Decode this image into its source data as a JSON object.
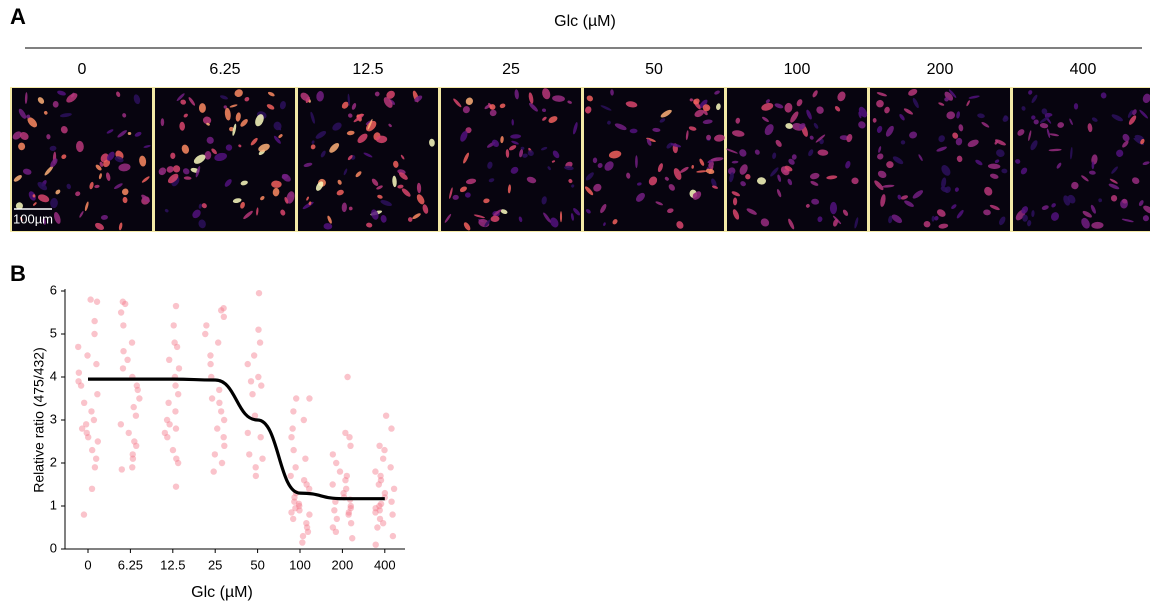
{
  "panel_a": {
    "label": "A",
    "title": "Glc (µM)",
    "conditions": [
      "0",
      "6.25",
      "12.5",
      "25",
      "50",
      "100",
      "200",
      "400"
    ],
    "scale_bar": "100µm"
  },
  "chart_data": {
    "type": "strip",
    "panel_label": "B",
    "x_label": "Glc (µM)",
    "y_label": "Relative ratio (475/432)",
    "categories": [
      "0",
      "6.25",
      "12.5",
      "25",
      "50",
      "100",
      "200",
      "400"
    ],
    "points": [
      [
        5.8,
        5.75,
        5.3,
        5.0,
        4.7,
        4.5,
        4.3,
        4.1,
        3.9,
        3.8,
        3.6,
        3.4,
        3.2,
        3.0,
        2.9,
        2.8,
        2.7,
        2.6,
        2.5,
        2.3,
        2.1,
        1.9,
        1.4,
        0.8
      ],
      [
        5.75,
        5.7,
        5.5,
        5.2,
        4.8,
        4.6,
        4.4,
        4.2,
        4.0,
        3.8,
        3.7,
        3.5,
        3.3,
        3.1,
        2.9,
        2.7,
        2.5,
        2.4,
        2.2,
        2.1,
        1.9,
        1.85
      ],
      [
        5.65,
        5.2,
        4.8,
        4.7,
        4.4,
        4.2,
        4.0,
        3.8,
        3.6,
        3.4,
        3.2,
        3.0,
        2.9,
        2.8,
        2.7,
        2.6,
        2.3,
        2.1,
        2.0,
        1.45
      ],
      [
        5.6,
        5.55,
        5.4,
        5.2,
        5.0,
        4.8,
        4.5,
        4.3,
        4.0,
        3.7,
        3.5,
        3.4,
        3.2,
        3.0,
        2.8,
        2.6,
        2.4,
        2.2,
        2.0,
        1.8
      ],
      [
        5.95,
        5.1,
        4.8,
        4.5,
        4.3,
        4.0,
        3.9,
        3.8,
        3.6,
        3.1,
        2.7,
        2.6,
        2.2,
        2.1,
        1.9,
        1.7
      ],
      [
        3.5,
        3.5,
        3.2,
        3.0,
        2.8,
        2.6,
        2.3,
        2.1,
        1.9,
        1.7,
        1.6,
        1.5,
        1.4,
        1.3,
        1.2,
        1.1,
        1.05,
        1.0,
        0.95,
        0.9,
        0.85,
        0.8,
        0.7,
        0.6,
        0.5,
        0.4,
        0.3,
        0.15
      ],
      [
        4.0,
        2.7,
        2.6,
        2.4,
        2.2,
        2.0,
        1.8,
        1.7,
        1.6,
        1.5,
        1.4,
        1.3,
        1.2,
        1.15,
        1.1,
        1.0,
        0.95,
        0.9,
        0.85,
        0.8,
        0.7,
        0.6,
        0.5,
        0.4,
        0.25
      ],
      [
        3.1,
        2.8,
        2.4,
        2.3,
        2.1,
        1.9,
        1.8,
        1.7,
        1.6,
        1.5,
        1.4,
        1.3,
        1.2,
        1.1,
        1.05,
        1.0,
        0.95,
        0.9,
        0.85,
        0.8,
        0.7,
        0.6,
        0.5,
        0.3,
        0.1
      ]
    ],
    "point_color": "#f47a8c",
    "fit": {
      "color": "#000000",
      "values": [
        3.95,
        3.95,
        3.95,
        3.93,
        3.0,
        1.3,
        1.17,
        1.17
      ]
    },
    "ylim": [
      0,
      6
    ],
    "yticks": [
      0,
      1,
      2,
      3,
      4,
      5,
      6
    ]
  }
}
